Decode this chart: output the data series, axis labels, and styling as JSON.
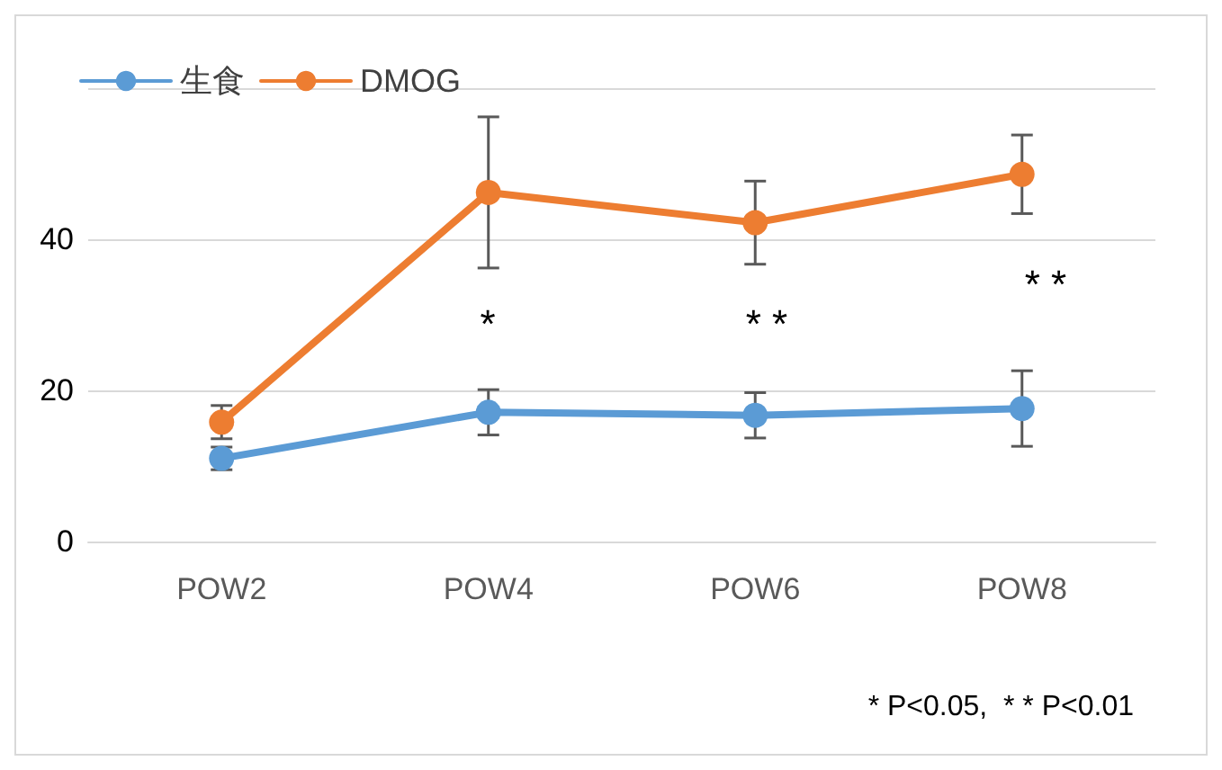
{
  "chart_data": {
    "type": "line",
    "categories": [
      "POW2",
      "POW4",
      "POW6",
      "POW8"
    ],
    "series": [
      {
        "name": "生食",
        "color": "#5b9bd5",
        "values": [
          11,
          17.1,
          16.7,
          17.6
        ],
        "errors": [
          1.5,
          3,
          3,
          5
        ]
      },
      {
        "name": "DMOG",
        "color": "#ed7d31",
        "values": [
          15.8,
          46.2,
          42.2,
          48.6
        ],
        "errors": [
          2.2,
          10,
          5.5,
          5.2
        ]
      }
    ],
    "ylim": [
      0,
      60
    ],
    "yticks": [
      0,
      20,
      40,
      {
        "value": 60,
        "label": null
      }
    ],
    "grid": "y",
    "legend": "top left",
    "marker": "circle",
    "line_style": "solid",
    "annotations": [
      "*",
      "* *",
      "* *",
      "* P<0.05,  * * P<0.01"
    ]
  }
}
